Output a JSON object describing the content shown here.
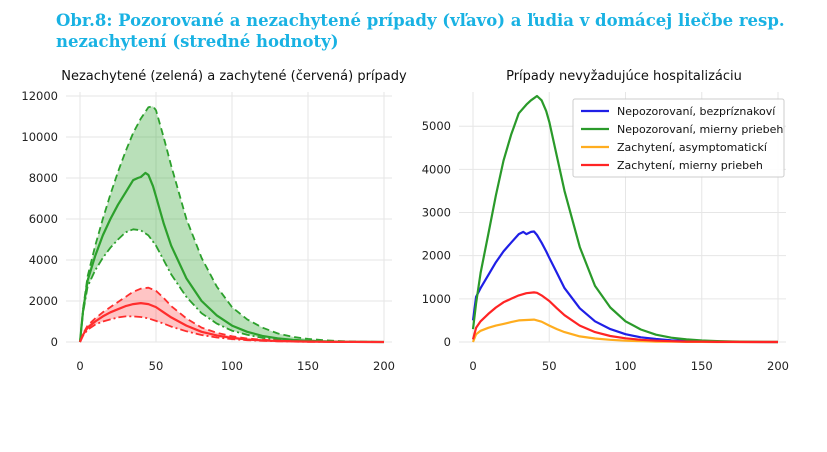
{
  "figure_title": "Obr.8: Pozorované a nezachytené prípady (vľavo) a ľudia v domácej liečbe resp. nezachytení  (stredné hodnoty)",
  "chart_data": [
    {
      "type": "line",
      "title": "Nezachytené (zelená) a zachytené (červená) prípady",
      "xlim": [
        0,
        200
      ],
      "ylim": [
        0,
        12000
      ],
      "x_ticks": [
        0,
        50,
        100,
        150,
        200
      ],
      "y_ticks": [
        0,
        2000,
        4000,
        6000,
        8000,
        10000,
        12000
      ],
      "grid": true,
      "series": [
        {
          "color": "#2ca02c",
          "style": "solid",
          "fill_band": "green",
          "x": [
            0,
            2,
            5,
            10,
            15,
            20,
            25,
            30,
            35,
            38,
            40,
            43,
            45,
            48,
            50,
            55,
            60,
            70,
            80,
            90,
            100,
            110,
            120,
            130,
            140,
            150,
            160,
            170,
            180,
            190,
            200
          ],
          "values": [
            0,
            1500,
            3000,
            4200,
            5200,
            6000,
            6700,
            7300,
            7900,
            8000,
            8050,
            8250,
            8150,
            7600,
            7100,
            5800,
            4700,
            3100,
            2000,
            1300,
            800,
            500,
            300,
            180,
            100,
            60,
            30,
            15,
            8,
            4,
            0
          ]
        },
        {
          "color": "#2ca02c",
          "style": "dashed",
          "fill_band": "green",
          "x": [
            0,
            2,
            5,
            10,
            15,
            20,
            25,
            30,
            35,
            40,
            45,
            48,
            50,
            55,
            60,
            70,
            80,
            90,
            100,
            110,
            120,
            130,
            140,
            150,
            160,
            170,
            180,
            190,
            200
          ],
          "values": [
            0,
            1600,
            3200,
            4700,
            6000,
            7200,
            8300,
            9300,
            10200,
            10900,
            11450,
            11500,
            11300,
            10000,
            8600,
            6000,
            4100,
            2700,
            1700,
            1100,
            700,
            420,
            250,
            150,
            90,
            50,
            25,
            12,
            0
          ]
        },
        {
          "color": "#2ca02c",
          "style": "dashdot",
          "fill_band": "green",
          "x": [
            0,
            2,
            5,
            10,
            15,
            20,
            25,
            30,
            35,
            40,
            45,
            50,
            55,
            60,
            70,
            80,
            90,
            100,
            110,
            120,
            130,
            140,
            150,
            160,
            170,
            180,
            190,
            200
          ],
          "values": [
            0,
            1400,
            2700,
            3500,
            4100,
            4600,
            5000,
            5350,
            5500,
            5450,
            5200,
            4700,
            4000,
            3300,
            2200,
            1400,
            900,
            550,
            350,
            200,
            120,
            70,
            40,
            20,
            10,
            5,
            2,
            0
          ]
        },
        {
          "color": "#ff2d2d",
          "style": "solid",
          "fill_band": "red",
          "x": [
            0,
            2,
            5,
            10,
            15,
            20,
            25,
            30,
            35,
            40,
            45,
            50,
            55,
            60,
            70,
            80,
            90,
            100,
            110,
            120,
            130,
            140,
            150,
            160,
            170,
            180,
            190,
            200
          ],
          "values": [
            0,
            350,
            700,
            1000,
            1250,
            1450,
            1600,
            1750,
            1850,
            1900,
            1850,
            1700,
            1450,
            1200,
            800,
            500,
            320,
            200,
            120,
            80,
            50,
            30,
            18,
            10,
            5,
            3,
            1,
            0
          ]
        },
        {
          "color": "#ff2d2d",
          "style": "dashed",
          "fill_band": "red",
          "x": [
            0,
            2,
            5,
            10,
            15,
            20,
            25,
            30,
            35,
            40,
            45,
            50,
            55,
            60,
            70,
            80,
            90,
            100,
            110,
            120,
            130,
            140,
            150,
            160,
            170,
            180,
            190,
            200
          ],
          "values": [
            0,
            400,
            800,
            1150,
            1450,
            1700,
            1950,
            2200,
            2450,
            2600,
            2650,
            2500,
            2150,
            1750,
            1150,
            700,
            450,
            280,
            170,
            110,
            70,
            40,
            25,
            14,
            8,
            4,
            2,
            0
          ]
        },
        {
          "color": "#ff2d2d",
          "style": "dashdot",
          "fill_band": "red",
          "x": [
            0,
            2,
            5,
            10,
            15,
            20,
            25,
            30,
            35,
            40,
            45,
            50,
            55,
            60,
            70,
            80,
            90,
            100,
            110,
            120,
            130,
            140,
            150,
            160,
            170,
            180,
            190,
            200
          ],
          "values": [
            0,
            300,
            600,
            850,
            1000,
            1100,
            1200,
            1250,
            1250,
            1220,
            1150,
            1030,
            900,
            750,
            520,
            340,
            220,
            140,
            90,
            55,
            35,
            20,
            12,
            7,
            4,
            2,
            1,
            0
          ]
        }
      ]
    },
    {
      "type": "line",
      "title": "Prípady nevyžadujúce hospitalizáciu",
      "xlim": [
        0,
        200
      ],
      "ylim": [
        0,
        5700
      ],
      "x_ticks": [
        0,
        50,
        100,
        150,
        200
      ],
      "y_ticks": [
        0,
        1000,
        2000,
        3000,
        4000,
        5000
      ],
      "grid": true,
      "legend_position": "top-right",
      "series": [
        {
          "name": "Nepozorovaní, bezpríznakoví",
          "color": "#1f1fe6",
          "x": [
            0,
            2,
            5,
            10,
            15,
            20,
            25,
            30,
            33,
            35,
            38,
            40,
            42,
            45,
            48,
            50,
            55,
            60,
            70,
            80,
            90,
            100,
            110,
            120,
            130,
            140,
            150,
            160,
            170,
            180,
            190,
            200
          ],
          "values": [
            500,
            1050,
            1250,
            1550,
            1850,
            2100,
            2300,
            2500,
            2550,
            2500,
            2550,
            2560,
            2480,
            2300,
            2100,
            1950,
            1600,
            1250,
            780,
            480,
            300,
            180,
            110,
            70,
            40,
            25,
            15,
            8,
            4,
            2,
            1,
            0
          ]
        },
        {
          "name": "Nepozorovaní, mierny priebeh",
          "color": "#2a9a2a",
          "x": [
            0,
            2,
            5,
            10,
            15,
            20,
            25,
            30,
            35,
            38,
            40,
            42,
            45,
            48,
            50,
            55,
            60,
            70,
            80,
            90,
            100,
            110,
            120,
            130,
            140,
            150,
            160,
            170,
            180,
            190,
            200
          ],
          "values": [
            300,
            900,
            1600,
            2500,
            3400,
            4200,
            4800,
            5300,
            5500,
            5600,
            5650,
            5700,
            5600,
            5350,
            5100,
            4300,
            3500,
            2200,
            1300,
            800,
            480,
            290,
            170,
            100,
            60,
            35,
            20,
            12,
            6,
            3,
            0
          ]
        },
        {
          "name": "Zachytení, asymptomatickí",
          "color": "#ffad1f",
          "x": [
            0,
            2,
            5,
            10,
            15,
            20,
            25,
            30,
            35,
            40,
            45,
            50,
            55,
            60,
            70,
            80,
            90,
            100,
            110,
            120,
            130,
            140,
            150,
            160,
            170,
            180,
            190,
            200
          ],
          "values": [
            0,
            180,
            260,
            330,
            380,
            420,
            460,
            500,
            510,
            520,
            470,
            380,
            300,
            230,
            130,
            80,
            50,
            30,
            18,
            10,
            6,
            3,
            2,
            1,
            0,
            0,
            0,
            0
          ]
        },
        {
          "name": "Zachytení, mierny priebeh",
          "color": "#ff2424",
          "x": [
            0,
            2,
            5,
            10,
            15,
            20,
            25,
            30,
            35,
            40,
            42,
            45,
            50,
            55,
            60,
            70,
            80,
            90,
            100,
            110,
            120,
            130,
            140,
            150,
            160,
            170,
            180,
            190,
            200
          ],
          "values": [
            60,
            330,
            480,
            650,
            800,
            920,
            1000,
            1080,
            1130,
            1150,
            1140,
            1080,
            950,
            780,
            620,
            380,
            230,
            140,
            85,
            50,
            30,
            18,
            10,
            6,
            3,
            2,
            1,
            0,
            0
          ]
        }
      ]
    }
  ]
}
